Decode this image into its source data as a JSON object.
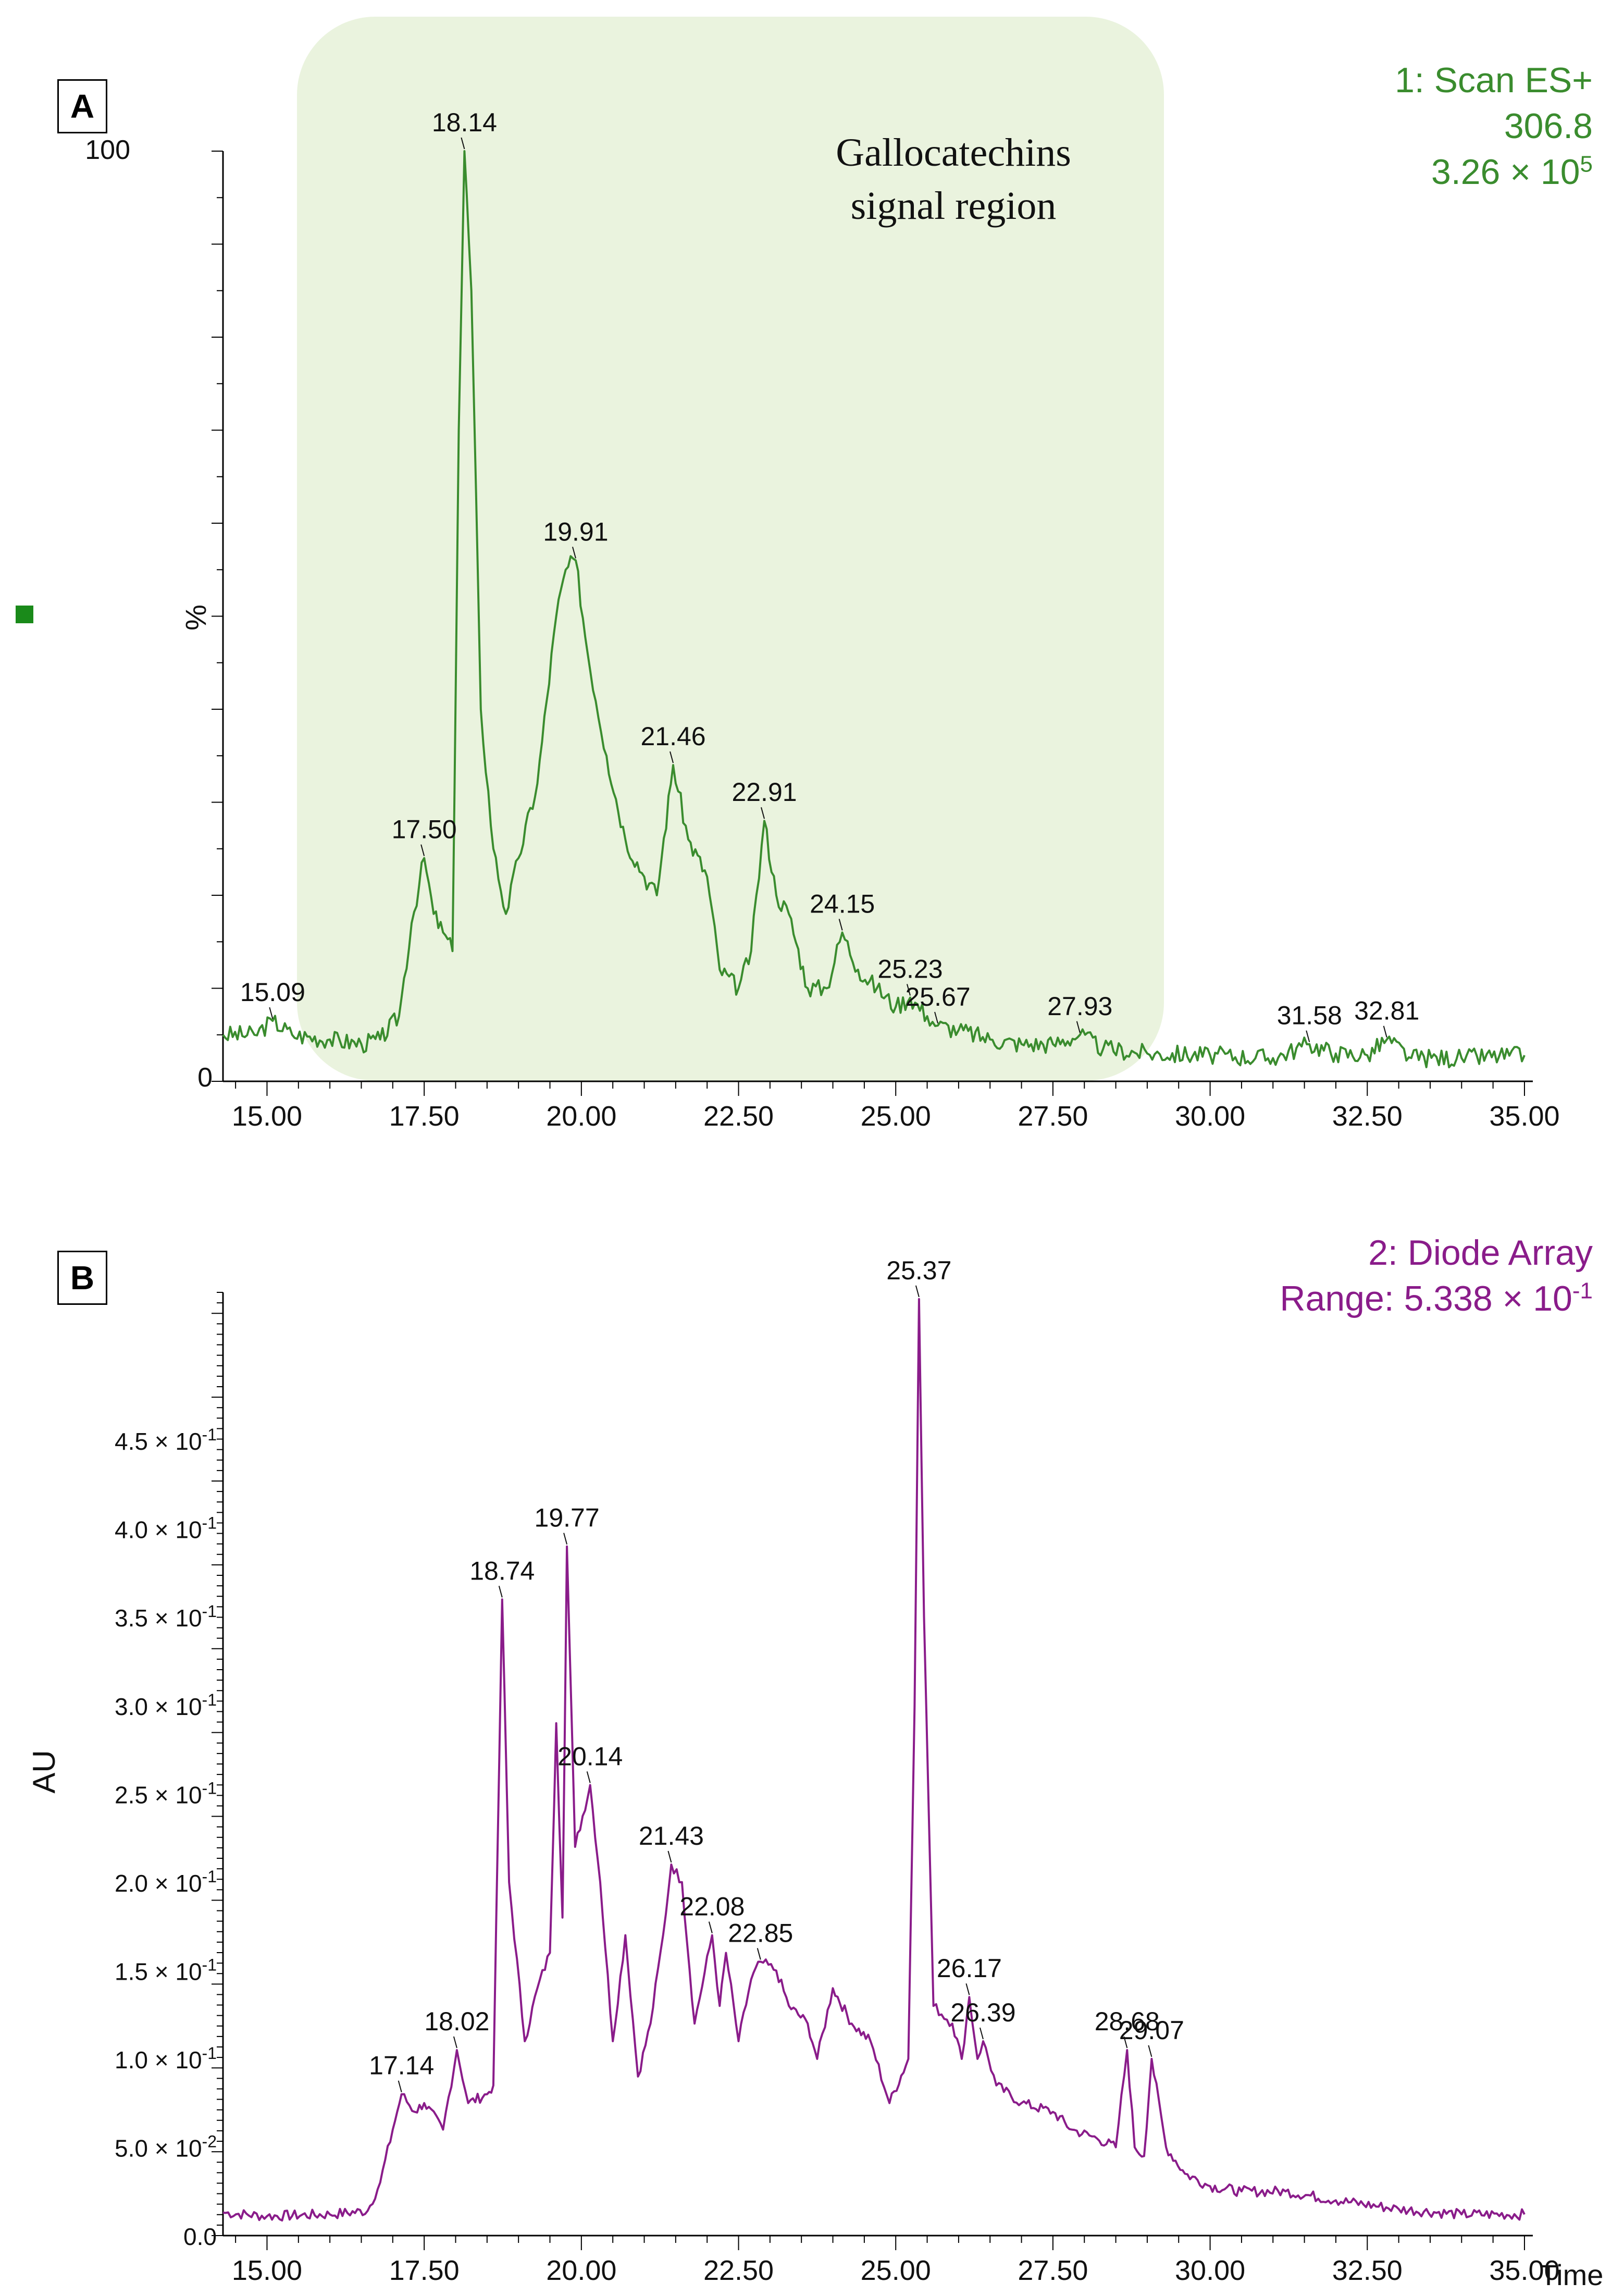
{
  "panel_a": {
    "label": "A",
    "trace_name": "1: Scan ES+",
    "mass": "306.8",
    "intensity_base": "3.26 × 10",
    "intensity_exp": "5",
    "region_line1": "Gallocatechins",
    "region_line2": "signal region",
    "ylabel": "%",
    "y_top_label": "100",
    "y_zero_label": "0"
  },
  "panel_b": {
    "label": "B",
    "trace_name": "2: Diode Array",
    "range_base": "Range: 5.338 × 10",
    "range_exp": "-1",
    "ylabel": "AU",
    "xlabel": "Time"
  },
  "colors": {
    "ms": "#3a8c2e",
    "uv": "#8a1c8a",
    "region": "#eaf3de"
  },
  "chart_data": [
    {
      "type": "line",
      "title": "1: Scan ES+ 306.8 3.26 × 10^5",
      "xlabel": "",
      "ylabel": "%",
      "xlim": [
        14.3,
        35.05
      ],
      "ylim": [
        0,
        100
      ],
      "x_ticks": [
        "15.00",
        "17.50",
        "20.00",
        "22.50",
        "25.00",
        "27.50",
        "30.00",
        "32.50",
        "35.00"
      ],
      "shaded_region": {
        "x": [
          15.5,
          29.3
        ],
        "label": "Gallocatechins signal region"
      },
      "peak_labels": [
        {
          "x": 15.09,
          "y": 6.5,
          "text": "15.09"
        },
        {
          "x": 17.5,
          "y": 24,
          "text": "17.50"
        },
        {
          "x": 18.14,
          "y": 100,
          "text": "18.14"
        },
        {
          "x": 19.91,
          "y": 56,
          "text": "19.91"
        },
        {
          "x": 21.46,
          "y": 34,
          "text": "21.46"
        },
        {
          "x": 22.91,
          "y": 28,
          "text": "22.91"
        },
        {
          "x": 24.15,
          "y": 16,
          "text": "24.15"
        },
        {
          "x": 25.23,
          "y": 9,
          "text": "25.23"
        },
        {
          "x": 25.67,
          "y": 6,
          "text": "25.67"
        },
        {
          "x": 27.93,
          "y": 5,
          "text": "27.93"
        },
        {
          "x": 31.58,
          "y": 4,
          "text": "31.58"
        },
        {
          "x": 32.81,
          "y": 4.5,
          "text": "32.81"
        }
      ],
      "series": [
        {
          "name": "306.8",
          "points": [
            [
              14.3,
              5
            ],
            [
              14.8,
              5
            ],
            [
              15.09,
              6.5
            ],
            [
              15.4,
              5
            ],
            [
              16.0,
              4.5
            ],
            [
              16.5,
              4
            ],
            [
              16.8,
              4.5
            ],
            [
              17.1,
              7
            ],
            [
              17.3,
              17
            ],
            [
              17.5,
              24
            ],
            [
              17.65,
              18
            ],
            [
              17.8,
              16
            ],
            [
              17.95,
              14
            ],
            [
              18.05,
              70
            ],
            [
              18.14,
              100
            ],
            [
              18.25,
              85
            ],
            [
              18.4,
              40
            ],
            [
              18.6,
              25
            ],
            [
              18.8,
              18
            ],
            [
              19.0,
              24
            ],
            [
              19.3,
              32
            ],
            [
              19.6,
              50
            ],
            [
              19.75,
              55
            ],
            [
              19.91,
              56
            ],
            [
              20.1,
              46
            ],
            [
              20.4,
              35
            ],
            [
              20.7,
              26
            ],
            [
              21.0,
              22
            ],
            [
              21.2,
              20
            ],
            [
              21.46,
              34
            ],
            [
              21.7,
              26
            ],
            [
              22.0,
              22
            ],
            [
              22.2,
              12
            ],
            [
              22.5,
              10
            ],
            [
              22.7,
              14
            ],
            [
              22.91,
              28
            ],
            [
              23.1,
              20
            ],
            [
              23.3,
              18
            ],
            [
              23.6,
              10
            ],
            [
              23.9,
              10
            ],
            [
              24.15,
              16
            ],
            [
              24.4,
              12
            ],
            [
              24.7,
              10
            ],
            [
              25.0,
              8
            ],
            [
              25.23,
              9
            ],
            [
              25.5,
              7
            ],
            [
              25.67,
              6
            ],
            [
              26.0,
              5.5
            ],
            [
              26.5,
              4.5
            ],
            [
              27.0,
              4
            ],
            [
              27.5,
              4
            ],
            [
              27.93,
              5
            ],
            [
              28.3,
              3.5
            ],
            [
              29,
              3
            ],
            [
              30,
              2.8
            ],
            [
              31,
              2.5
            ],
            [
              31.58,
              4
            ],
            [
              32,
              3
            ],
            [
              32.5,
              2.8
            ],
            [
              32.81,
              4.5
            ],
            [
              33.2,
              2.5
            ],
            [
              34,
              2.5
            ],
            [
              35,
              2.8
            ]
          ]
        }
      ]
    },
    {
      "type": "line",
      "title": "2: Diode Array Range: 5.338 × 10^-1",
      "xlabel": "Time",
      "ylabel": "AU",
      "xlim": [
        14.3,
        35.05
      ],
      "ylim": [
        0,
        0.5338
      ],
      "x_ticks": [
        "15.00",
        "17.50",
        "20.00",
        "22.50",
        "25.00",
        "27.50",
        "30.00",
        "32.50",
        "35.00"
      ],
      "y_ticks": [
        {
          "v": 0.0,
          "base": "0.0",
          "exp": ""
        },
        {
          "v": 0.05,
          "base": "5.0 × 10",
          "exp": "-2"
        },
        {
          "v": 0.1,
          "base": "1.0 × 10",
          "exp": "-1"
        },
        {
          "v": 0.15,
          "base": "1.5 × 10",
          "exp": "-1"
        },
        {
          "v": 0.2,
          "base": "2.0 × 10",
          "exp": "-1"
        },
        {
          "v": 0.25,
          "base": "2.5 × 10",
          "exp": "-1"
        },
        {
          "v": 0.3,
          "base": "3.0 × 10",
          "exp": "-1"
        },
        {
          "v": 0.35,
          "base": "3.5 × 10",
          "exp": "-1"
        },
        {
          "v": 0.4,
          "base": "4.0 × 10",
          "exp": "-1"
        },
        {
          "v": 0.45,
          "base": "4.5 × 10",
          "exp": "-1"
        }
      ],
      "peak_labels": [
        {
          "x": 17.14,
          "y": 0.08,
          "text": "17.14"
        },
        {
          "x": 18.02,
          "y": 0.105,
          "text": "18.02"
        },
        {
          "x": 18.74,
          "y": 0.36,
          "text": "18.74"
        },
        {
          "x": 19.77,
          "y": 0.39,
          "text": "19.77"
        },
        {
          "x": 20.14,
          "y": 0.255,
          "text": "20.14"
        },
        {
          "x": 21.43,
          "y": 0.21,
          "text": "21.43"
        },
        {
          "x": 22.08,
          "y": 0.17,
          "text": "22.08"
        },
        {
          "x": 22.85,
          "y": 0.155,
          "text": "22.85"
        },
        {
          "x": 25.37,
          "y": 0.53,
          "text": "25.37"
        },
        {
          "x": 26.17,
          "y": 0.135,
          "text": "26.17"
        },
        {
          "x": 26.39,
          "y": 0.11,
          "text": "26.39"
        },
        {
          "x": 28.68,
          "y": 0.105,
          "text": "28.68"
        },
        {
          "x": 29.07,
          "y": 0.1,
          "text": "29.07"
        }
      ],
      "series": [
        {
          "name": "Diode Array",
          "points": [
            [
              14.3,
              0.013
            ],
            [
              15.0,
              0.011
            ],
            [
              16.0,
              0.012
            ],
            [
              16.6,
              0.014
            ],
            [
              16.8,
              0.03
            ],
            [
              17.0,
              0.06
            ],
            [
              17.14,
              0.08
            ],
            [
              17.35,
              0.07
            ],
            [
              17.5,
              0.075
            ],
            [
              17.8,
              0.06
            ],
            [
              18.02,
              0.105
            ],
            [
              18.2,
              0.075
            ],
            [
              18.5,
              0.08
            ],
            [
              18.6,
              0.085
            ],
            [
              18.74,
              0.36
            ],
            [
              18.85,
              0.2
            ],
            [
              19.1,
              0.11
            ],
            [
              19.3,
              0.14
            ],
            [
              19.5,
              0.16
            ],
            [
              19.6,
              0.29
            ],
            [
              19.7,
              0.18
            ],
            [
              19.77,
              0.39
            ],
            [
              19.9,
              0.22
            ],
            [
              20.14,
              0.255
            ],
            [
              20.3,
              0.2
            ],
            [
              20.5,
              0.11
            ],
            [
              20.7,
              0.17
            ],
            [
              20.9,
              0.09
            ],
            [
              21.1,
              0.12
            ],
            [
              21.3,
              0.17
            ],
            [
              21.43,
              0.21
            ],
            [
              21.6,
              0.2
            ],
            [
              21.8,
              0.12
            ],
            [
              22.08,
              0.17
            ],
            [
              22.2,
              0.13
            ],
            [
              22.3,
              0.16
            ],
            [
              22.5,
              0.11
            ],
            [
              22.7,
              0.145
            ],
            [
              22.85,
              0.155
            ],
            [
              23.1,
              0.15
            ],
            [
              23.3,
              0.13
            ],
            [
              23.6,
              0.12
            ],
            [
              23.75,
              0.1
            ],
            [
              24.0,
              0.14
            ],
            [
              24.3,
              0.12
            ],
            [
              24.6,
              0.11
            ],
            [
              24.9,
              0.075
            ],
            [
              25.2,
              0.1
            ],
            [
              25.3,
              0.3
            ],
            [
              25.37,
              0.53
            ],
            [
              25.45,
              0.35
            ],
            [
              25.6,
              0.13
            ],
            [
              25.9,
              0.12
            ],
            [
              26.05,
              0.1
            ],
            [
              26.17,
              0.135
            ],
            [
              26.3,
              0.1
            ],
            [
              26.39,
              0.11
            ],
            [
              26.6,
              0.085
            ],
            [
              27.0,
              0.075
            ],
            [
              27.5,
              0.07
            ],
            [
              27.8,
              0.06
            ],
            [
              28.2,
              0.055
            ],
            [
              28.5,
              0.05
            ],
            [
              28.68,
              0.105
            ],
            [
              28.8,
              0.05
            ],
            [
              28.95,
              0.045
            ],
            [
              29.07,
              0.1
            ],
            [
              29.3,
              0.05
            ],
            [
              29.6,
              0.035
            ],
            [
              30.0,
              0.028
            ],
            [
              30.5,
              0.025
            ],
            [
              31.2,
              0.025
            ],
            [
              32.0,
              0.02
            ],
            [
              33.0,
              0.015
            ],
            [
              34.0,
              0.012
            ],
            [
              35.0,
              0.012
            ]
          ]
        }
      ]
    }
  ]
}
